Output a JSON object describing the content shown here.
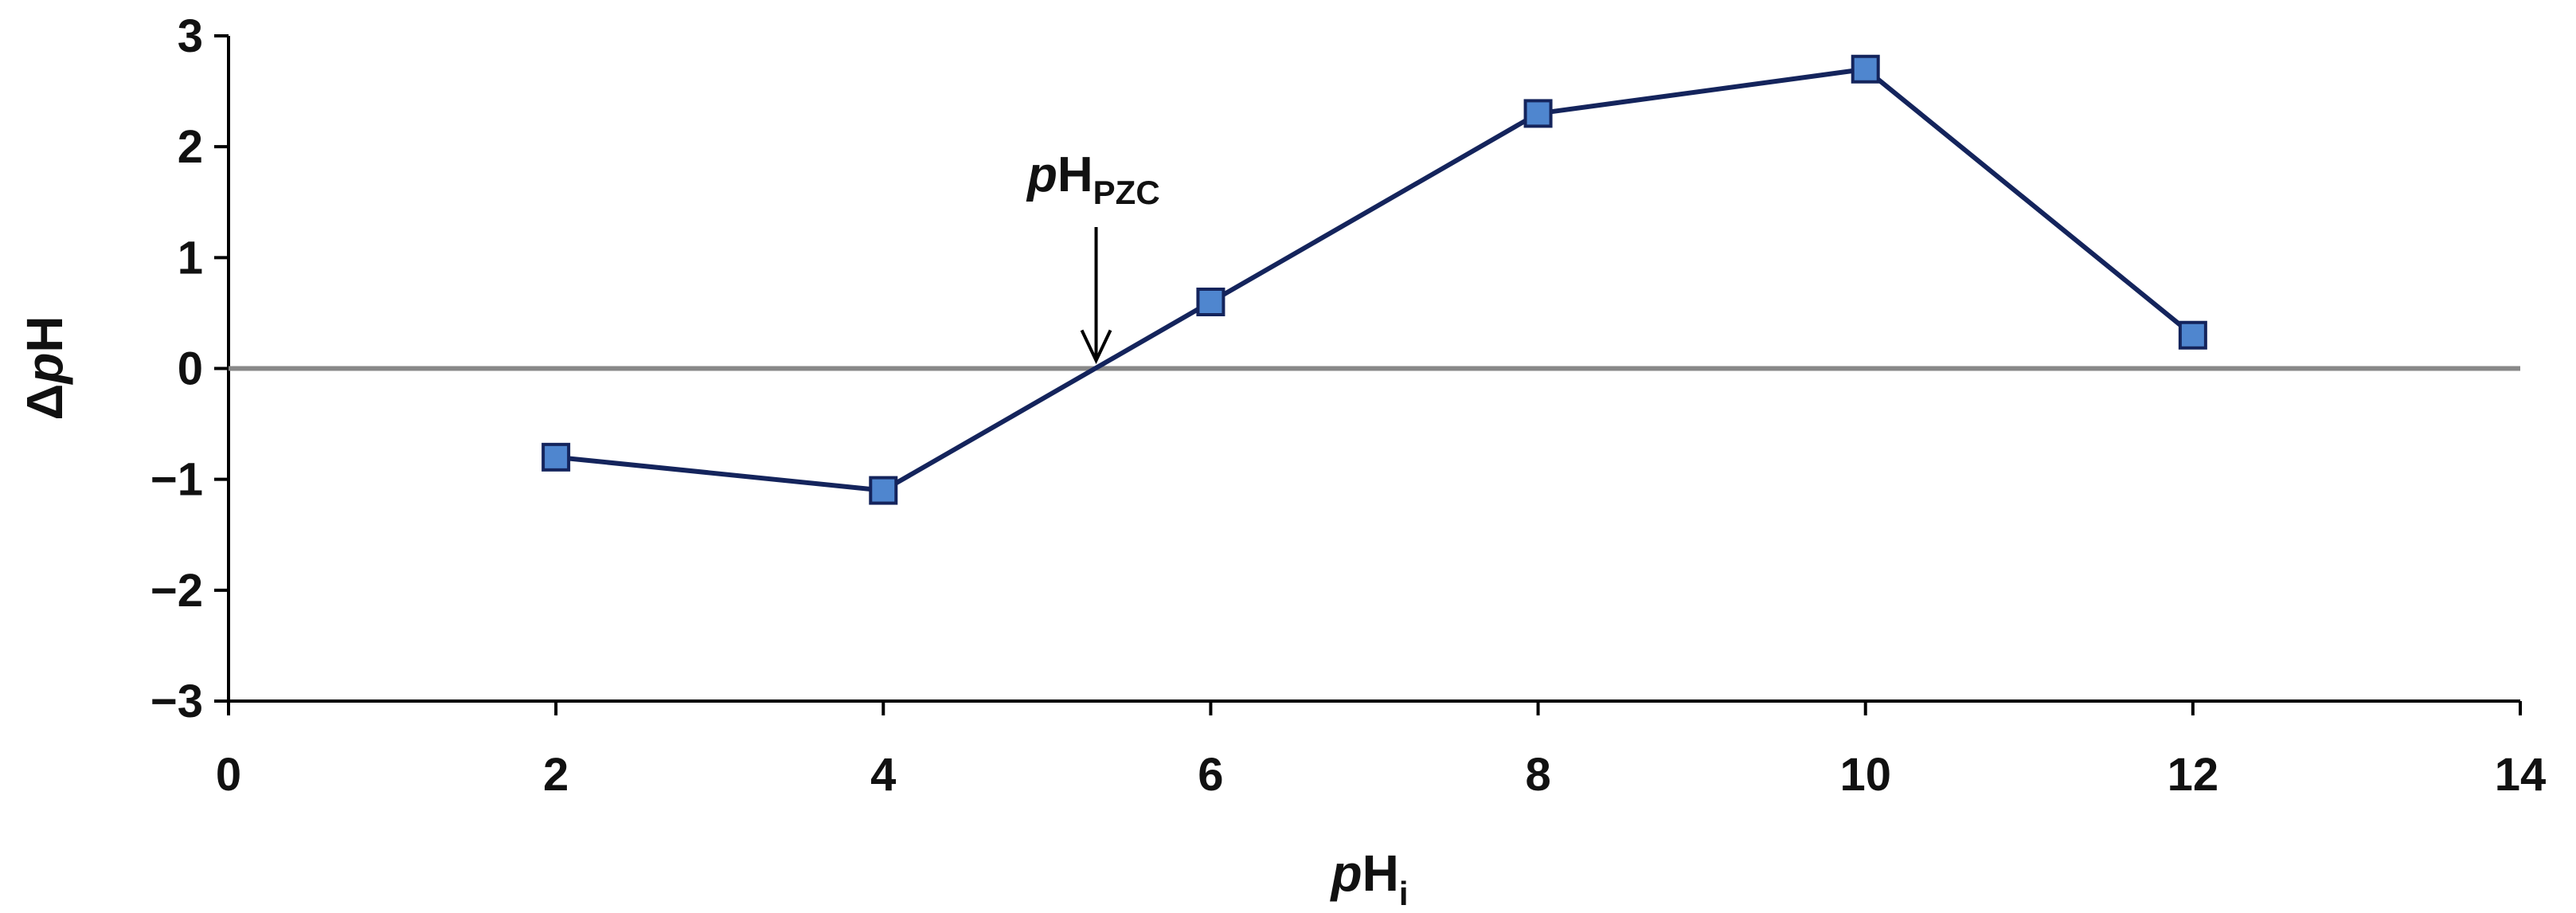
{
  "chart_data": {
    "type": "line",
    "x": [
      2,
      4,
      6,
      8,
      10,
      12
    ],
    "series": [
      {
        "values": [
          -0.8,
          -1.1,
          0.6,
          2.3,
          2.7,
          0.3
        ]
      }
    ],
    "xlabel": {
      "main": "pH",
      "italic": "p",
      "rest": "H",
      "sub": "i"
    },
    "ylabel": {
      "delta": "Δ",
      "italic": "p",
      "rest": "H"
    },
    "xlim": [
      0,
      14
    ],
    "ylim": [
      -3,
      3
    ],
    "xticks": [
      0,
      2,
      4,
      6,
      8,
      10,
      12,
      14
    ],
    "yticks": [
      3,
      2,
      1,
      0,
      -1,
      -2,
      -3
    ],
    "ytick_labels": [
      "3",
      "2",
      "1",
      "0",
      "−1",
      "−2",
      "−3"
    ],
    "annotation": {
      "italic": "p",
      "rest": "H",
      "sub": "PZC",
      "x": 5.3,
      "y": 0
    },
    "reference_line_y": 0,
    "grid": false,
    "colors": {
      "line": "#14245c",
      "marker_fill": "#4f86cf",
      "marker_stroke": "#14245c",
      "zero_line": "#888888",
      "axis": "#000000"
    }
  }
}
